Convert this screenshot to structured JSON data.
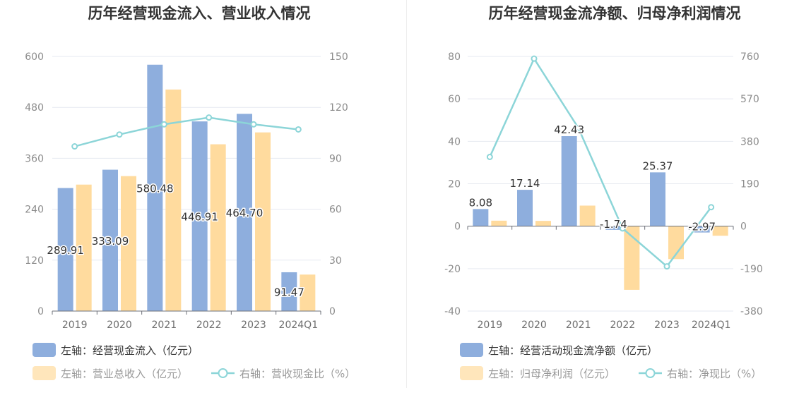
{
  "chart_data": [
    {
      "type": "bar",
      "title": "历年经营现金流入、营业收入情况",
      "categories": [
        "2019",
        "2020",
        "2021",
        "2022",
        "2023",
        "2024Q1"
      ],
      "left_axis": {
        "ylim": [
          0,
          600
        ],
        "ticks": [
          "0",
          "120",
          "240",
          "360",
          "480",
          "600"
        ]
      },
      "right_axis": {
        "ylim": [
          0,
          150
        ],
        "ticks": [
          "0",
          "30",
          "60",
          "90",
          "120",
          "150"
        ]
      },
      "series": [
        {
          "name": "左轴：经营现金流入（亿元）",
          "kind": "bar",
          "axis": "left",
          "color": "#8eaedd",
          "values": [
            289.91,
            333.09,
            580.48,
            446.91,
            464.7,
            91.47
          ],
          "labels": [
            "289.91",
            "333.09",
            "580.48",
            "446.91",
            "464.70",
            "91.47"
          ]
        },
        {
          "name": "左轴：营业总收入（亿元）",
          "kind": "bar",
          "axis": "left",
          "color": "#ffdb9e",
          "values": [
            298,
            318,
            522,
            393,
            421,
            86
          ]
        },
        {
          "name": "右轴：营收现金比（%）",
          "kind": "line",
          "axis": "right",
          "color": "#8cd5d8",
          "values": [
            97,
            104,
            110,
            114,
            110,
            107
          ]
        }
      ],
      "legend": "bottom"
    },
    {
      "type": "bar",
      "title": "历年经营现金流净额、归母净利润情况",
      "categories": [
        "2019",
        "2020",
        "2021",
        "2022",
        "2023",
        "2024Q1"
      ],
      "left_axis": {
        "ylim": [
          -40,
          80
        ],
        "ticks": [
          "-40",
          "-20",
          "0",
          "20",
          "40",
          "60",
          "80"
        ]
      },
      "right_axis": {
        "ylim": [
          -380,
          760
        ],
        "ticks": [
          "-380",
          "-190",
          "0",
          "190",
          "380",
          "570",
          "760"
        ]
      },
      "series": [
        {
          "name": "左轴：经营活动现金流净额（亿元）",
          "kind": "bar",
          "axis": "left",
          "color": "#8eaedd",
          "values": [
            8.08,
            17.14,
            42.43,
            -1.74,
            25.37,
            -2.97
          ],
          "labels": [
            "8.08",
            "17.14",
            "42.43",
            "-1.74",
            "25.37",
            "-2.97"
          ]
        },
        {
          "name": "左轴：归母净利润（亿元）",
          "kind": "bar",
          "axis": "left",
          "color": "#ffdb9e",
          "values": [
            2.6,
            2.5,
            9.7,
            -30,
            -15.5,
            -4.5
          ]
        },
        {
          "name": "右轴：净现比（%）",
          "kind": "line",
          "axis": "right",
          "color": "#8cd5d8",
          "values": [
            310,
            750,
            440,
            -10,
            -180,
            85
          ]
        }
      ],
      "legend": "bottom"
    }
  ]
}
